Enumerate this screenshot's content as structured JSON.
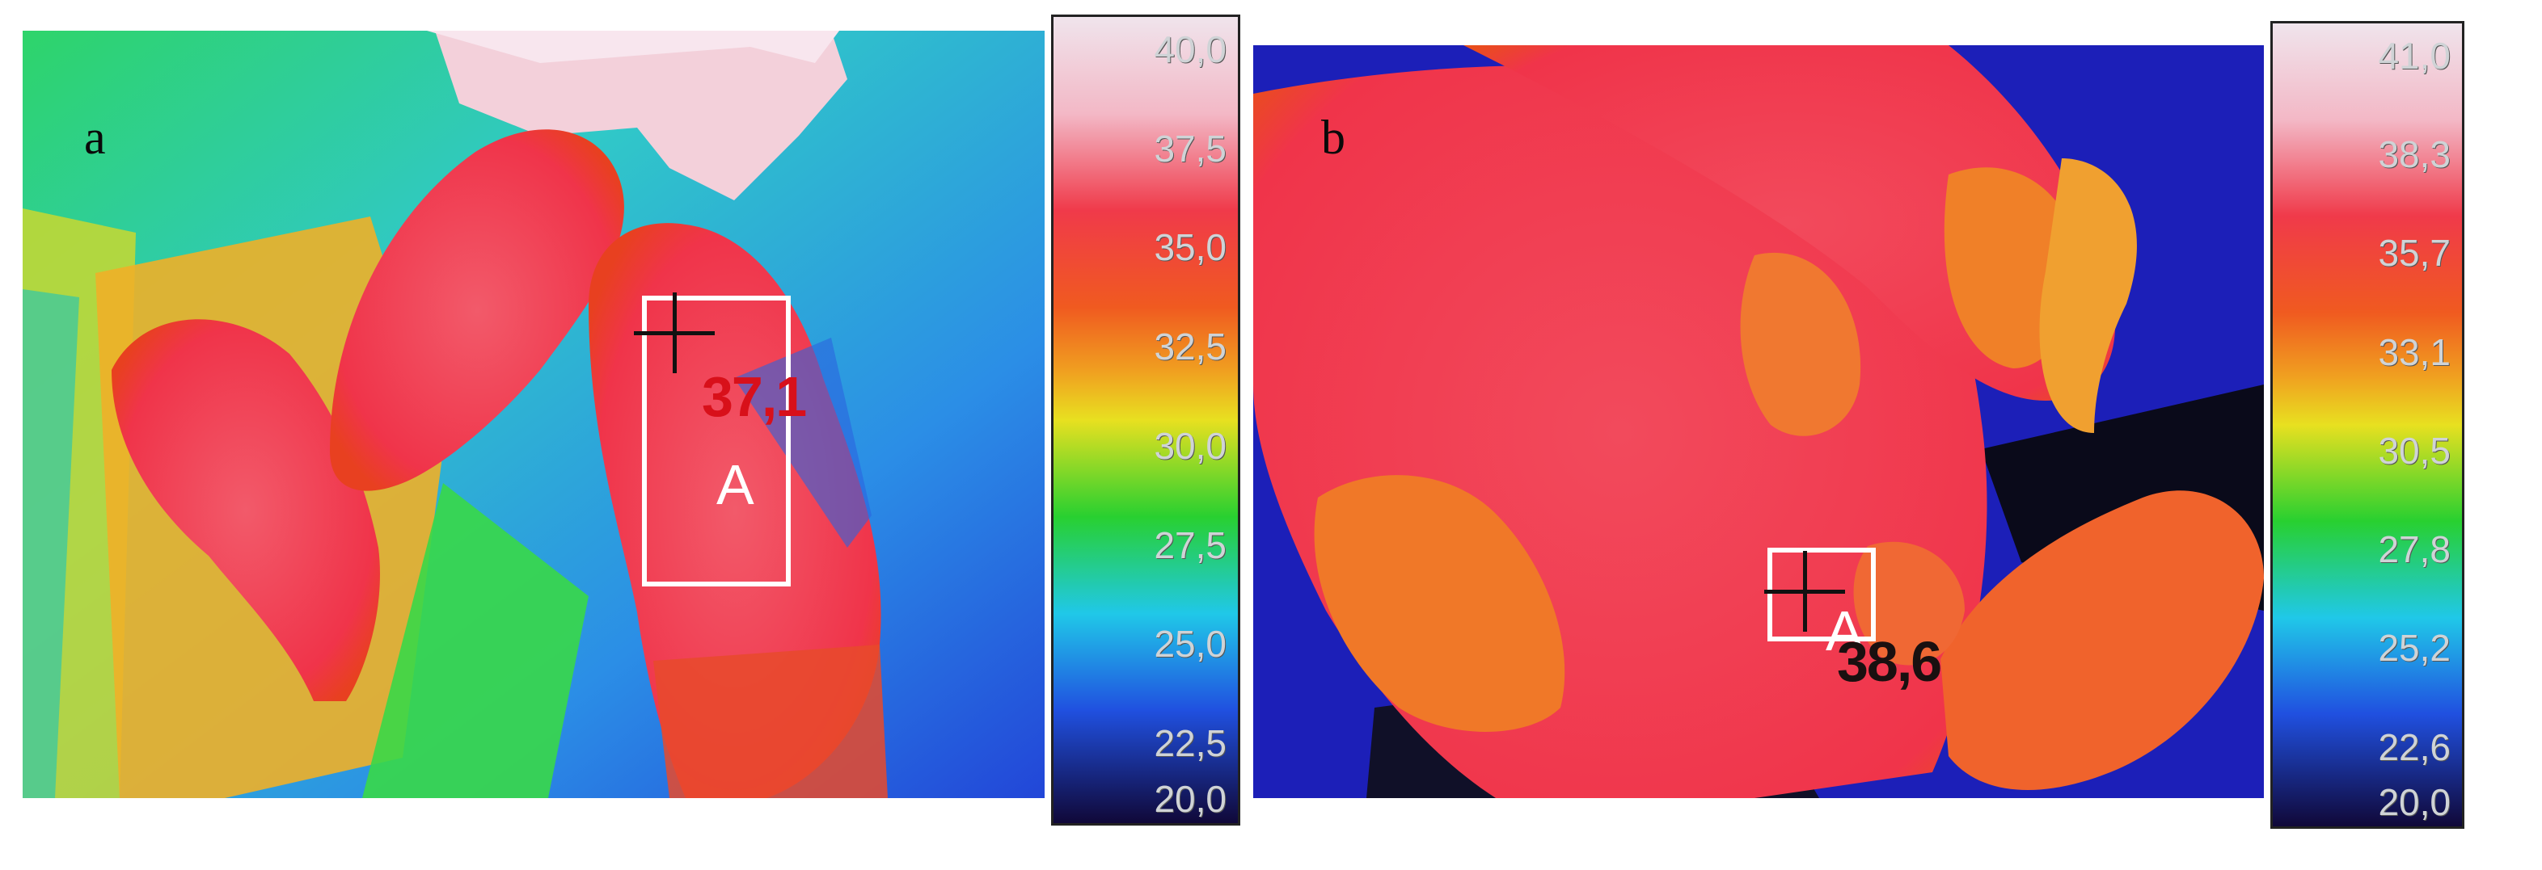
{
  "panels": [
    {
      "letter": "a",
      "roi_label": "A",
      "temperature_readout": "37,1",
      "readout_color": "#d8101a",
      "scale_ticks": [
        "40,0",
        "37,5",
        "35,0",
        "32,5",
        "30,0",
        "27,5",
        "25,0",
        "22,5",
        "20,0"
      ]
    },
    {
      "letter": "b",
      "roi_label": "A",
      "temperature_readout": "38,6",
      "readout_color": "#1a1010",
      "scale_ticks": [
        "41,0",
        "38,3",
        "35,7",
        "33,1",
        "30,5",
        "27,8",
        "25,2",
        "22,6",
        "20,0"
      ]
    }
  ],
  "palette": {
    "hot": "#f0e4ec",
    "warm_red": "#f03a4a",
    "orange": "#f08a2a",
    "yellow": "#e8e020",
    "green": "#28d030",
    "cyan": "#20c8e8",
    "blue": "#2050e0",
    "cold": "#100838"
  }
}
